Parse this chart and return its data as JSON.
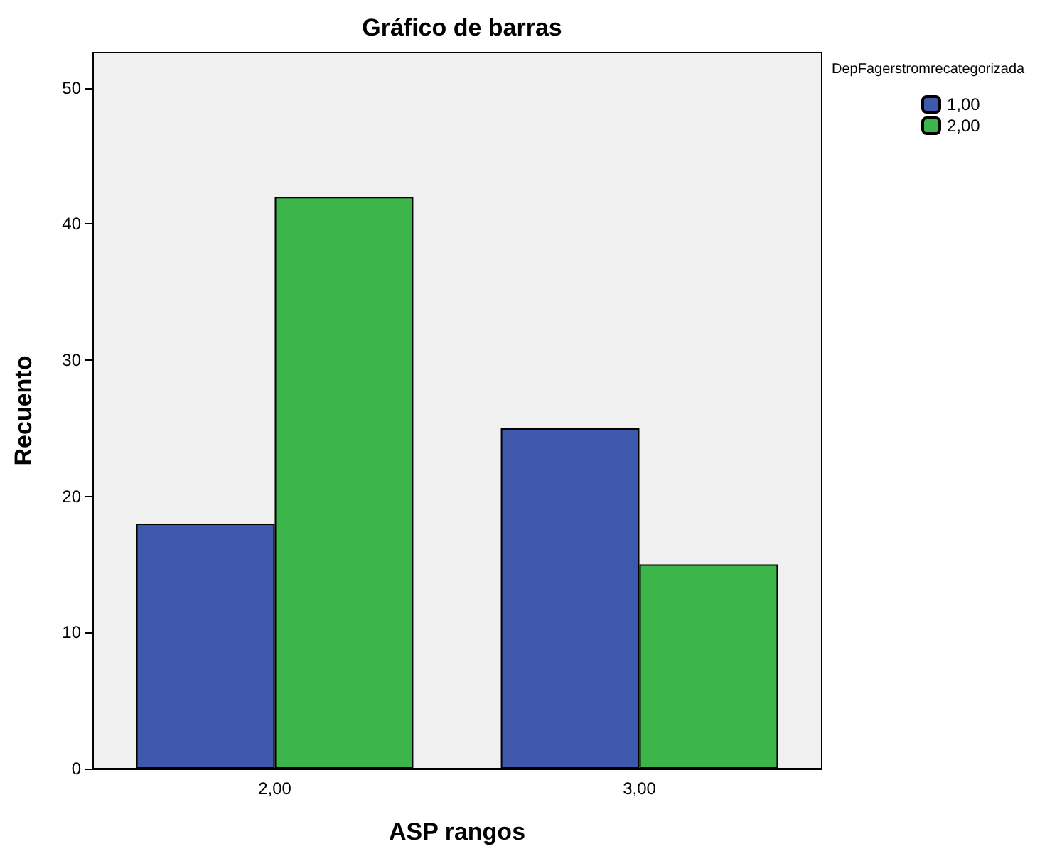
{
  "chart_data": {
    "type": "bar",
    "title": "Gráfico de barras",
    "xlabel": "ASP rangos",
    "ylabel": "Recuento",
    "legend_title": "DepFagerstromrecategorizada",
    "categories": [
      "2,00",
      "3,00"
    ],
    "series": [
      {
        "name": "1,00",
        "color": "#3e58ac",
        "values": [
          18,
          25
        ]
      },
      {
        "name": "2,00",
        "color": "#3cb54a",
        "values": [
          42,
          15
        ]
      }
    ],
    "ylim": [
      0,
      52.6
    ],
    "yticks": [
      0,
      10,
      20,
      30,
      40,
      50
    ],
    "grid": false,
    "legend": "top right"
  }
}
